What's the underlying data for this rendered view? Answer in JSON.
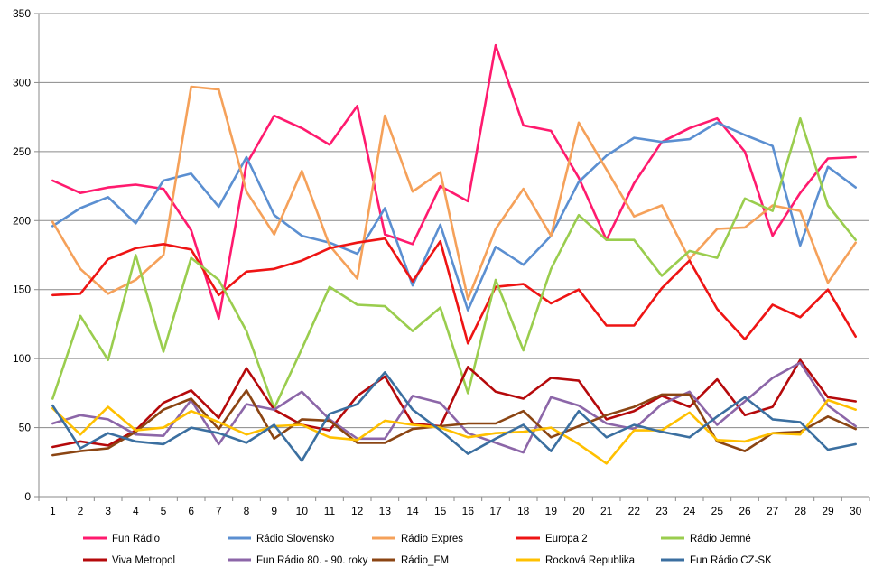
{
  "chart_data": {
    "type": "line",
    "title": "",
    "xlabel": "",
    "ylabel": "",
    "ylim": [
      0,
      350
    ],
    "ytick_step": 50,
    "grid": true,
    "legend_position": "bottom",
    "x": [
      1,
      2,
      3,
      4,
      5,
      6,
      7,
      8,
      9,
      10,
      11,
      12,
      13,
      14,
      15,
      16,
      17,
      18,
      19,
      20,
      21,
      22,
      23,
      24,
      25,
      26,
      27,
      28,
      29,
      30
    ],
    "series": [
      {
        "name": "Fun Rádio",
        "color": "#ff1a6e",
        "values": [
          229,
          220,
          224,
          226,
          223,
          193,
          129,
          241,
          276,
          267,
          255,
          283,
          190,
          183,
          225,
          214,
          327,
          269,
          265,
          231,
          186,
          227,
          257,
          267,
          274,
          250,
          189,
          220,
          245,
          246
        ]
      },
      {
        "name": "Rádio Slovensko",
        "color": "#5b8fd1",
        "values": [
          196,
          209,
          217,
          198,
          229,
          234,
          210,
          246,
          204,
          189,
          184,
          176,
          209,
          153,
          197,
          135,
          181,
          168,
          189,
          228,
          247,
          260,
          257,
          259,
          271,
          262,
          254,
          182,
          239,
          224
        ]
      },
      {
        "name": "Rádio Expres",
        "color": "#f5a15a",
        "values": [
          199,
          165,
          147,
          157,
          175,
          297,
          295,
          221,
          190,
          236,
          182,
          158,
          276,
          221,
          235,
          143,
          194,
          223,
          189,
          271,
          237,
          203,
          211,
          172,
          194,
          195,
          211,
          207,
          155,
          184
        ]
      },
      {
        "name": "Europa 2",
        "color": "#ee1414",
        "values": [
          146,
          147,
          172,
          180,
          183,
          179,
          146,
          163,
          165,
          171,
          180,
          184,
          187,
          156,
          185,
          111,
          152,
          154,
          140,
          150,
          124,
          124,
          151,
          171,
          136,
          114,
          139,
          130,
          150,
          116
        ]
      },
      {
        "name": "Rádio Jemné",
        "color": "#9acd4e",
        "values": [
          71,
          131,
          99,
          175,
          105,
          173,
          157,
          120,
          64,
          107,
          152,
          139,
          138,
          120,
          137,
          75,
          157,
          106,
          165,
          204,
          186,
          186,
          160,
          178,
          173,
          216,
          207,
          274,
          211,
          186
        ]
      },
      {
        "name": "Viva Metropol",
        "color": "#b5090b",
        "values": [
          36,
          40,
          37,
          48,
          68,
          77,
          57,
          93,
          63,
          52,
          48,
          73,
          87,
          53,
          51,
          94,
          76,
          71,
          86,
          84,
          56,
          62,
          73,
          65,
          85,
          59,
          65,
          99,
          72,
          69
        ]
      },
      {
        "name": "Fun Rádio 80. - 90. roky",
        "color": "#8c66a8",
        "values": [
          53,
          59,
          56,
          45,
          44,
          70,
          38,
          67,
          63,
          76,
          56,
          42,
          42,
          73,
          68,
          46,
          39,
          32,
          72,
          66,
          53,
          49,
          67,
          76,
          52,
          69,
          86,
          97,
          66,
          51
        ]
      },
      {
        "name": "Rádio_FM",
        "color": "#8b4513",
        "values": [
          30,
          33,
          35,
          47,
          63,
          71,
          49,
          77,
          42,
          56,
          55,
          39,
          39,
          49,
          51,
          53,
          53,
          62,
          43,
          51,
          59,
          65,
          74,
          74,
          40,
          33,
          46,
          47,
          58,
          49
        ]
      },
      {
        "name": "Rocková Republika",
        "color": "#ffc000",
        "values": [
          64,
          45,
          65,
          48,
          50,
          62,
          54,
          45,
          51,
          52,
          43,
          41,
          55,
          52,
          50,
          43,
          46,
          47,
          50,
          38,
          24,
          48,
          48,
          61,
          41,
          40,
          46,
          45,
          70,
          63
        ]
      },
      {
        "name": "Fun Rádio CZ-SK",
        "color": "#3b6fa0",
        "values": [
          66,
          35,
          46,
          40,
          38,
          50,
          46,
          39,
          52,
          26,
          60,
          67,
          90,
          63,
          48,
          31,
          42,
          52,
          33,
          62,
          43,
          52,
          47,
          43,
          58,
          72,
          56,
          54,
          34,
          38
        ]
      }
    ]
  }
}
